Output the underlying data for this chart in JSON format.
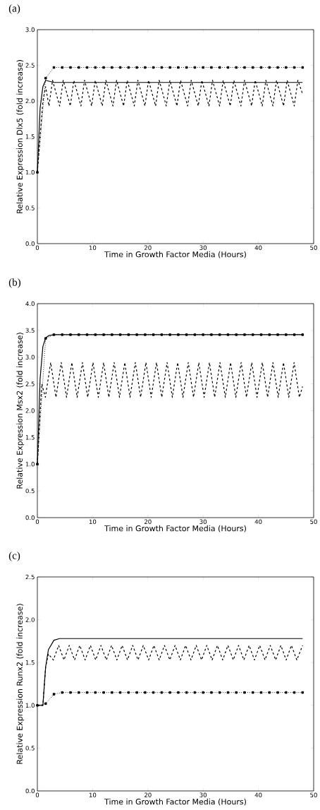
{
  "chart_data": [
    {
      "type": "line",
      "title": "(a)",
      "xlabel": "Time in Growth Factor Media (Hours)",
      "ylabel": "Relative Expression Dlx5 (fold increase)",
      "xlim": [
        0,
        50
      ],
      "xticks": [
        0,
        10,
        20,
        30,
        40,
        50
      ],
      "ylim": [
        0,
        3.0
      ],
      "yticks": [
        {
          "value": 0,
          "label": "0.0"
        },
        {
          "value": 0.5,
          "label": "0.5"
        },
        {
          "value": 1.0,
          "label": "1.0"
        },
        {
          "value": 1.5,
          "label": "1.5"
        },
        {
          "value": 2.0,
          "label": "2.0"
        },
        {
          "value": 2.5,
          "label": "2.5"
        },
        {
          "value": 3.0,
          "label": "3.0"
        }
      ],
      "series": [
        {
          "color": "#000000",
          "line_style": "solid",
          "marker": "none",
          "x": [
            0,
            0.5,
            1,
            1.5,
            2,
            3,
            48
          ],
          "values": [
            1.0,
            1.9,
            2.2,
            2.29,
            2.28,
            2.26,
            2.26
          ]
        },
        {
          "color": "#000000",
          "line_style": "dashed",
          "marker": "none",
          "x": [
            0,
            1,
            1.5,
            2.1,
            2.75,
            4.03,
            4.68,
            5.96,
            6.61,
            7.89,
            8.54,
            9.82,
            10.47,
            11.75,
            12.4,
            13.68,
            14.33,
            15.61,
            16.26,
            17.54,
            18.19,
            19.47,
            20.12,
            21.4,
            22.05,
            23.33,
            23.98,
            25.26,
            25.91,
            27.19,
            27.84,
            29.12,
            29.77,
            31.05,
            31.7,
            32.98,
            33.63,
            34.91,
            35.56,
            36.84,
            37.49,
            38.77,
            39.42,
            40.7,
            41.35,
            42.63,
            43.28,
            44.56,
            45.21,
            46.49,
            47.14,
            48
          ],
          "values": [
            1.0,
            2.0,
            2.2,
            1.93,
            2.29,
            1.93,
            2.29,
            1.93,
            2.29,
            1.93,
            2.29,
            1.93,
            2.29,
            1.93,
            2.29,
            1.93,
            2.29,
            1.93,
            2.29,
            1.93,
            2.29,
            1.93,
            2.29,
            1.93,
            2.29,
            1.93,
            2.29,
            1.93,
            2.29,
            1.93,
            2.29,
            1.93,
            2.29,
            1.93,
            2.29,
            1.93,
            2.29,
            1.93,
            2.29,
            1.93,
            2.29,
            1.93,
            2.29,
            1.93,
            2.29,
            1.93,
            2.29,
            1.93,
            2.29,
            1.93,
            2.29,
            2.1
          ]
        },
        {
          "color": "#000000",
          "line_style": "dotted",
          "marker": "square",
          "x": [
            0,
            1.5,
            3,
            4.5,
            6,
            7.5,
            9,
            10.5,
            12,
            13.5,
            15,
            16.5,
            18,
            19.5,
            21,
            22.5,
            24,
            25.5,
            27,
            28.5,
            30,
            31.5,
            33,
            34.5,
            36,
            37.5,
            39,
            40.5,
            42,
            43.5,
            45,
            46.5,
            48
          ],
          "values": [
            1.0,
            2.32,
            2.47,
            2.47,
            2.47,
            2.47,
            2.47,
            2.47,
            2.47,
            2.47,
            2.47,
            2.47,
            2.47,
            2.47,
            2.47,
            2.47,
            2.47,
            2.47,
            2.47,
            2.47,
            2.47,
            2.47,
            2.47,
            2.47,
            2.47,
            2.47,
            2.47,
            2.47,
            2.47,
            2.47,
            2.47,
            2.47,
            2.47
          ]
        }
      ]
    },
    {
      "type": "line",
      "title": "(b)",
      "xlabel": "Time in Growth Factor Media (Hours)",
      "ylabel": "Relative Expression Msx2 (fold increase)",
      "xlim": [
        0,
        50
      ],
      "xticks": [
        0,
        10,
        20,
        30,
        40,
        50
      ],
      "ylim": [
        0,
        4.0
      ],
      "yticks": [
        {
          "value": 0,
          "label": "0.0"
        },
        {
          "value": 0.5,
          "label": "0.5"
        },
        {
          "value": 1.0,
          "label": "1.0"
        },
        {
          "value": 1.5,
          "label": "1.5"
        },
        {
          "value": 2.0,
          "label": "2.0"
        },
        {
          "value": 2.5,
          "label": "2.5"
        },
        {
          "value": 3.0,
          "label": "3.0"
        },
        {
          "value": 3.5,
          "label": "3.5"
        },
        {
          "value": 4.0,
          "label": "4.0"
        }
      ],
      "series": [
        {
          "color": "#000000",
          "line_style": "solid",
          "marker": "none",
          "x": [
            0,
            0.5,
            1,
            1.5,
            2,
            3,
            48
          ],
          "values": [
            1.0,
            2.6,
            3.2,
            3.36,
            3.4,
            3.42,
            3.42
          ]
        },
        {
          "color": "#000000",
          "line_style": "dashed",
          "marker": "none",
          "x": [
            0,
            0.8,
            1.45,
            2.41,
            3.37,
            4.33,
            5.28,
            6.24,
            7.2,
            8.16,
            9.11,
            10.07,
            11.03,
            11.99,
            12.94,
            13.9,
            14.86,
            15.82,
            16.77,
            17.73,
            18.69,
            19.65,
            20.6,
            21.56,
            22.52,
            23.48,
            24.43,
            25.39,
            26.35,
            27.31,
            28.26,
            29.22,
            30.18,
            31.14,
            32.09,
            33.05,
            34.01,
            34.97,
            35.92,
            36.88,
            37.84,
            38.8,
            39.75,
            40.71,
            41.67,
            42.63,
            43.58,
            44.54,
            45.5,
            46.46,
            47.41,
            48
          ],
          "values": [
            1.0,
            2.5,
            2.25,
            2.9,
            2.25,
            2.9,
            2.25,
            2.9,
            2.25,
            2.9,
            2.25,
            2.9,
            2.25,
            2.9,
            2.25,
            2.9,
            2.25,
            2.9,
            2.25,
            2.9,
            2.25,
            2.9,
            2.25,
            2.9,
            2.25,
            2.9,
            2.25,
            2.9,
            2.25,
            2.9,
            2.25,
            2.9,
            2.25,
            2.9,
            2.25,
            2.9,
            2.25,
            2.9,
            2.25,
            2.9,
            2.25,
            2.9,
            2.25,
            2.9,
            2.25,
            2.9,
            2.25,
            2.9,
            2.25,
            2.9,
            2.25,
            2.45
          ]
        },
        {
          "color": "#000000",
          "line_style": "dotted",
          "marker": "square",
          "x": [
            0,
            1.5,
            3,
            4.5,
            6,
            7.5,
            9,
            10.5,
            12,
            13.5,
            15,
            16.5,
            18,
            19.5,
            21,
            22.5,
            24,
            25.5,
            27,
            28.5,
            30,
            31.5,
            33,
            34.5,
            36,
            37.5,
            39,
            40.5,
            42,
            43.5,
            45,
            46.5,
            48
          ],
          "values": [
            1.0,
            3.35,
            3.42,
            3.42,
            3.42,
            3.42,
            3.42,
            3.42,
            3.42,
            3.42,
            3.42,
            3.42,
            3.42,
            3.42,
            3.42,
            3.42,
            3.42,
            3.42,
            3.42,
            3.42,
            3.42,
            3.42,
            3.42,
            3.42,
            3.42,
            3.42,
            3.42,
            3.42,
            3.42,
            3.42,
            3.42,
            3.42,
            3.42
          ]
        }
      ]
    },
    {
      "type": "line",
      "title": "(c)",
      "xlabel": "Time in Growth Factor Media (Hours)",
      "ylabel": "Relative Expression Runx2 (fold increase)",
      "xlim": [
        0,
        50
      ],
      "xticks": [
        0,
        10,
        20,
        30,
        40,
        50
      ],
      "ylim": [
        0,
        2.5
      ],
      "yticks": [
        {
          "value": 0,
          "label": "0.0"
        },
        {
          "value": 0.5,
          "label": "0.5"
        },
        {
          "value": 1.0,
          "label": "1.0"
        },
        {
          "value": 1.5,
          "label": "1.5"
        },
        {
          "value": 2.0,
          "label": "2.0"
        },
        {
          "value": 2.5,
          "label": "2.5"
        }
      ],
      "series": [
        {
          "color": "#000000",
          "line_style": "solid",
          "marker": "none",
          "x": [
            0,
            1,
            1.5,
            2,
            3,
            4,
            48
          ],
          "values": [
            1.0,
            1.0,
            1.45,
            1.65,
            1.76,
            1.78,
            1.78
          ]
        },
        {
          "color": "#000000",
          "line_style": "dashed",
          "marker": "none",
          "x": [
            0,
            1,
            1.5,
            2,
            2.9,
            3.85,
            4.82,
            5.77,
            6.73,
            7.68,
            8.65,
            9.6,
            10.56,
            11.51,
            12.48,
            13.43,
            14.39,
            15.34,
            16.31,
            17.26,
            18.22,
            19.17,
            20.14,
            21.09,
            22.05,
            23.0,
            23.97,
            24.92,
            25.88,
            26.83,
            27.8,
            28.75,
            29.71,
            30.66,
            31.63,
            32.58,
            33.54,
            34.49,
            35.46,
            36.41,
            37.37,
            38.32,
            39.29,
            40.24,
            41.2,
            42.15,
            43.12,
            44.07,
            45.03,
            45.98,
            46.95,
            48
          ],
          "values": [
            1.0,
            1.0,
            1.45,
            1.6,
            1.53,
            1.7,
            1.53,
            1.7,
            1.53,
            1.7,
            1.53,
            1.7,
            1.53,
            1.7,
            1.53,
            1.7,
            1.53,
            1.7,
            1.53,
            1.7,
            1.53,
            1.7,
            1.53,
            1.7,
            1.53,
            1.7,
            1.53,
            1.7,
            1.53,
            1.7,
            1.53,
            1.7,
            1.53,
            1.7,
            1.53,
            1.7,
            1.53,
            1.7,
            1.53,
            1.7,
            1.53,
            1.7,
            1.53,
            1.7,
            1.53,
            1.7,
            1.53,
            1.7,
            1.53,
            1.7,
            1.53,
            1.7
          ]
        },
        {
          "color": "#000000",
          "line_style": "dotted",
          "marker": "square",
          "x": [
            0,
            1.5,
            3,
            4.5,
            6,
            7.5,
            9,
            10.5,
            12,
            13.5,
            15,
            16.5,
            18,
            19.5,
            21,
            22.5,
            24,
            25.5,
            27,
            28.5,
            30,
            31.5,
            33,
            34.5,
            36,
            37.5,
            39,
            40.5,
            42,
            43.5,
            45,
            46.5,
            48
          ],
          "values": [
            1.0,
            1.02,
            1.13,
            1.15,
            1.15,
            1.15,
            1.15,
            1.15,
            1.15,
            1.15,
            1.15,
            1.15,
            1.15,
            1.15,
            1.15,
            1.15,
            1.15,
            1.15,
            1.15,
            1.15,
            1.15,
            1.15,
            1.15,
            1.15,
            1.15,
            1.15,
            1.15,
            1.15,
            1.15,
            1.15,
            1.15,
            1.15,
            1.15
          ]
        }
      ]
    }
  ]
}
